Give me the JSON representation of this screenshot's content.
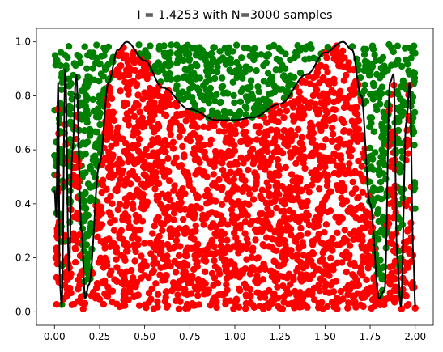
{
  "chart_data": {
    "type": "scatter",
    "title": "I =  1.4253 with N=3000 samples",
    "xlabel": "",
    "ylabel": "",
    "xlim": [
      -0.1,
      2.1
    ],
    "ylim": [
      -0.05,
      1.05
    ],
    "x_ticks": [
      0.0,
      0.25,
      0.5,
      0.75,
      1.0,
      1.25,
      1.5,
      1.75,
      2.0
    ],
    "x_tick_labels": [
      "0.00",
      "0.25",
      "0.50",
      "0.75",
      "1.00",
      "1.25",
      "1.50",
      "1.75",
      "2.00"
    ],
    "y_ticks": [
      0.0,
      0.2,
      0.4,
      0.6,
      0.8,
      1.0
    ],
    "y_tick_labels": [
      "0.0",
      "0.2",
      "0.4",
      "0.6",
      "0.8",
      "1.0"
    ],
    "grid": false,
    "legend": "none",
    "sample_count": 3000,
    "integral_estimate": 1.4253,
    "colors": {
      "below_curve": "#ff0000",
      "above_curve": "#008000",
      "curve": "#000000"
    },
    "curve_x_range": [
      0,
      2
    ],
    "curve_samples": [
      [
        0.0,
        0.45
      ],
      [
        0.01,
        0.35
      ],
      [
        0.02,
        0.85
      ],
      [
        0.03,
        0.1
      ],
      [
        0.04,
        0.02
      ],
      [
        0.06,
        0.9
      ],
      [
        0.08,
        0.15
      ],
      [
        0.1,
        0.6
      ],
      [
        0.12,
        0.88
      ],
      [
        0.15,
        0.3
      ],
      [
        0.17,
        0.05
      ],
      [
        0.19,
        0.1
      ],
      [
        0.25,
        0.55
      ],
      [
        0.3,
        0.85
      ],
      [
        0.35,
        0.97
      ],
      [
        0.4,
        1.0
      ],
      [
        0.5,
        0.93
      ],
      [
        0.6,
        0.83
      ],
      [
        0.75,
        0.75
      ],
      [
        0.9,
        0.71
      ],
      [
        1.0,
        0.71
      ],
      [
        1.1,
        0.72
      ],
      [
        1.25,
        0.77
      ],
      [
        1.4,
        0.88
      ],
      [
        1.5,
        0.96
      ],
      [
        1.6,
        1.0
      ],
      [
        1.65,
        0.97
      ],
      [
        1.7,
        0.8
      ],
      [
        1.75,
        0.4
      ],
      [
        1.8,
        0.05
      ],
      [
        1.83,
        0.08
      ],
      [
        1.86,
        0.85
      ],
      [
        1.88,
        0.88
      ],
      [
        1.9,
        0.2
      ],
      [
        1.92,
        0.02
      ],
      [
        1.95,
        0.7
      ],
      [
        1.97,
        0.85
      ],
      [
        1.99,
        0.2
      ],
      [
        2.0,
        0.02
      ]
    ]
  }
}
